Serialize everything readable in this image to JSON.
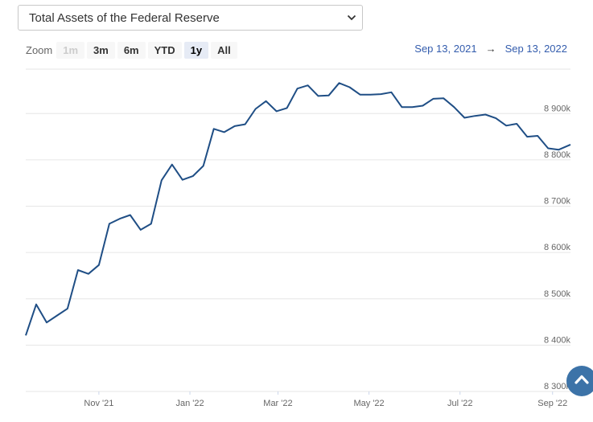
{
  "selector": {
    "value": "Total Assets of the Federal Reserve"
  },
  "zoom": {
    "label": "Zoom",
    "buttons": [
      {
        "label": "1m",
        "state": "disabled"
      },
      {
        "label": "3m",
        "state": "normal"
      },
      {
        "label": "6m",
        "state": "normal"
      },
      {
        "label": "YTD",
        "state": "normal"
      },
      {
        "label": "1y",
        "state": "active"
      },
      {
        "label": "All",
        "state": "normal"
      }
    ]
  },
  "range": {
    "from": "Sep 13, 2021",
    "arrow": "→",
    "to": "Sep 13, 2022"
  },
  "colors": {
    "line": "#1f4e85",
    "accent": "#335cad",
    "grid": "#e6e6e6",
    "scroll_button": "#3c73a8"
  },
  "icons": {
    "select": "chevron-down-icon",
    "scroll": "chevron-up-icon"
  },
  "chart_data": {
    "type": "line",
    "title": "",
    "xlabel": "",
    "ylabel": "",
    "x_tick_labels": [
      "Nov '21",
      "Jan '22",
      "Mar '22",
      "May '22",
      "Jul '22",
      "Sep '22"
    ],
    "x_tick_dates": [
      "2021-11-01",
      "2022-01-01",
      "2022-03-01",
      "2022-05-01",
      "2022-07-01",
      "2022-09-01"
    ],
    "xlim": [
      "2021-09-13",
      "2022-09-13"
    ],
    "y_tick_labels": [
      "8 300k",
      "8 400k",
      "8 500k",
      "8 600k",
      "8 700k",
      "8 800k",
      "8 900k"
    ],
    "y_tick_values": [
      8300,
      8400,
      8500,
      8600,
      8700,
      8800,
      8900
    ],
    "ylim": [
      8300,
      8996
    ],
    "y_axis_position": "right",
    "grid": true,
    "series": [
      {
        "name": "",
        "x": [
          "2021-09-13",
          "2021-09-20",
          "2021-09-27",
          "2021-10-04",
          "2021-10-11",
          "2021-10-18",
          "2021-10-25",
          "2021-11-01",
          "2021-11-08",
          "2021-11-15",
          "2021-11-22",
          "2021-11-29",
          "2021-12-06",
          "2021-12-13",
          "2021-12-20",
          "2021-12-27",
          "2022-01-03",
          "2022-01-10",
          "2022-01-17",
          "2022-01-24",
          "2022-01-31",
          "2022-02-07",
          "2022-02-14",
          "2022-02-21",
          "2022-02-28",
          "2022-03-07",
          "2022-03-14",
          "2022-03-21",
          "2022-03-28",
          "2022-04-04",
          "2022-04-11",
          "2022-04-18",
          "2022-04-25",
          "2022-05-02",
          "2022-05-09",
          "2022-05-16",
          "2022-05-23",
          "2022-05-30",
          "2022-06-06",
          "2022-06-13",
          "2022-06-20",
          "2022-06-27",
          "2022-07-04",
          "2022-07-11",
          "2022-07-18",
          "2022-07-25",
          "2022-08-01",
          "2022-08-08",
          "2022-08-15",
          "2022-08-22",
          "2022-08-29",
          "2022-09-05",
          "2022-09-13"
        ],
        "values": [
          8421,
          8488,
          8449,
          8464,
          8479,
          8562,
          8554,
          8573,
          8662,
          8673,
          8681,
          8649,
          8662,
          8756,
          8790,
          8757,
          8765,
          8787,
          8867,
          8860,
          8873,
          8877,
          8910,
          8927,
          8905,
          8912,
          8954,
          8961,
          8938,
          8939,
          8966,
          8957,
          8941,
          8941,
          8942,
          8946,
          8914,
          8914,
          8917,
          8932,
          8933,
          8914,
          8891,
          8895,
          8898,
          8890,
          8874,
          8878,
          8850,
          8852,
          8825,
          8822,
          8833
        ]
      }
    ]
  }
}
